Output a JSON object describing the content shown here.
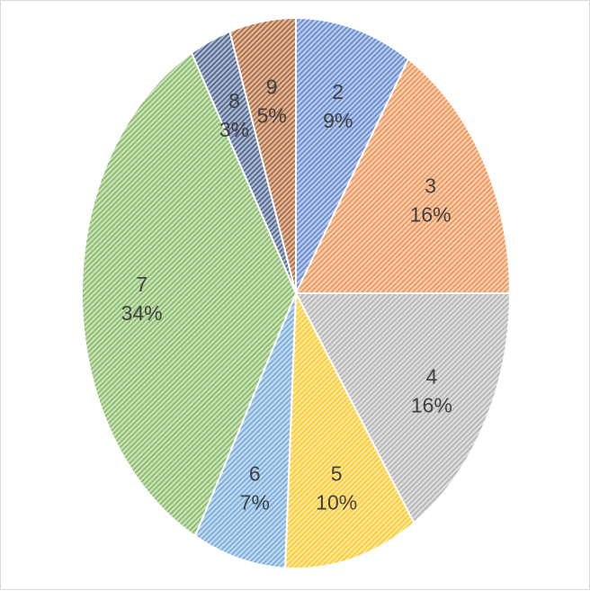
{
  "chart_data": {
    "type": "pie",
    "title": "",
    "legend": "none",
    "slices": [
      {
        "category": "2",
        "percent_label": "9%",
        "value": 8.8,
        "color": "#4472c4"
      },
      {
        "category": "3",
        "percent_label": "16%",
        "value": 16.2,
        "color": "#ed7d31"
      },
      {
        "category": "4",
        "percent_label": "16%",
        "value": 15.7,
        "color": "#a5a5a5"
      },
      {
        "category": "5",
        "percent_label": "10%",
        "value": 10.1,
        "color": "#ffc000"
      },
      {
        "category": "6",
        "percent_label": "7%",
        "value": 7.0,
        "color": "#5b9bd5"
      },
      {
        "category": "7",
        "percent_label": "34%",
        "value": 34.1,
        "color": "#70ad47"
      },
      {
        "category": "8",
        "percent_label": "3%",
        "value": 3.1,
        "color": "#264478"
      },
      {
        "category": "9",
        "percent_label": "5%",
        "value": 5.0,
        "color": "#9e480e"
      }
    ]
  }
}
